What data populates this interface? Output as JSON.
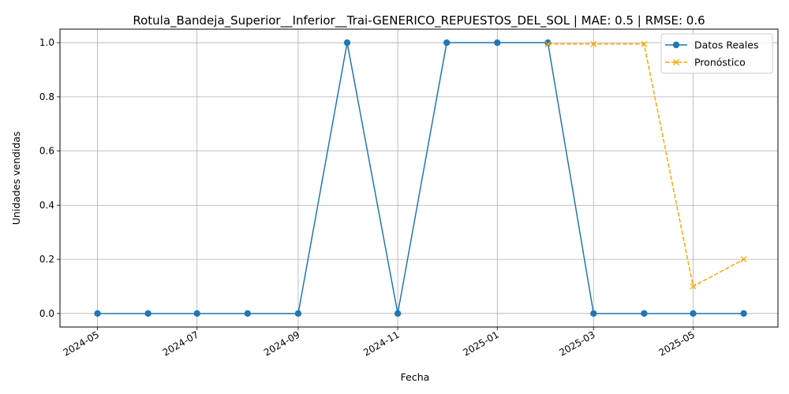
{
  "chart_data": {
    "type": "line",
    "title": "Rotula_Bandeja_Superior__Inferior__Trai-GENERICO_REPUESTOS_DEL_SOL | MAE: 0.5 | RMSE: 0.6",
    "xlabel": "Fecha",
    "ylabel": "Unidades vendidas",
    "xlim": [
      "2024-04-08",
      "2025-06-22"
    ],
    "ylim": [
      -0.05,
      1.05
    ],
    "x_ticks": [
      "2024-05",
      "2024-07",
      "2024-09",
      "2024-11",
      "2025-01",
      "2025-03",
      "2025-05"
    ],
    "y_ticks": [
      "0.0",
      "0.2",
      "0.4",
      "0.6",
      "0.8",
      "1.0"
    ],
    "y_tick_values": [
      0.0,
      0.2,
      0.4,
      0.6,
      0.8,
      1.0
    ],
    "grid": true,
    "legend_position": "top-right",
    "series": [
      {
        "name": "Datos Reales",
        "color": "#1f77b4",
        "line_style": "solid",
        "marker": "circle",
        "x": [
          "2024-05-01",
          "2024-06-01",
          "2024-07-01",
          "2024-08-01",
          "2024-09-01",
          "2024-10-01",
          "2024-11-01",
          "2024-12-01",
          "2025-01-01",
          "2025-02-01",
          "2025-03-01",
          "2025-04-01",
          "2025-05-01",
          "2025-06-01"
        ],
        "values": [
          0,
          0,
          0,
          0,
          0,
          1,
          0,
          1,
          1,
          1,
          0,
          0,
          0,
          0
        ]
      },
      {
        "name": "Pronóstico",
        "color": "#ffa500",
        "line_style": "dashed",
        "marker": "x",
        "x": [
          "2025-02-01",
          "2025-03-01",
          "2025-04-01",
          "2025-05-01",
          "2025-06-01"
        ],
        "values": [
          0.995,
          0.995,
          0.995,
          0.1,
          0.2
        ]
      }
    ]
  }
}
